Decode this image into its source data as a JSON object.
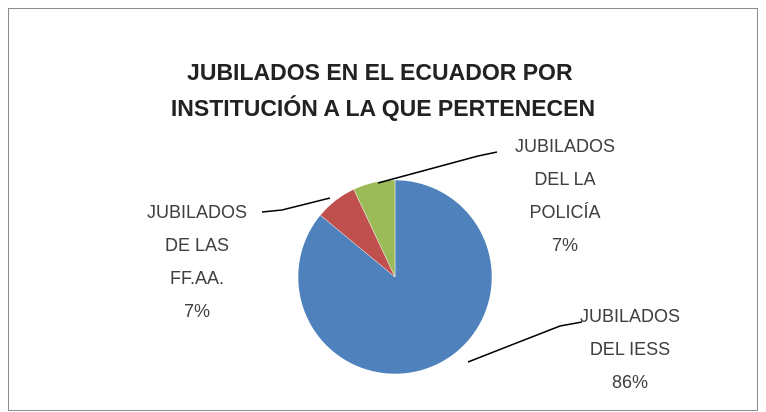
{
  "chart_data": {
    "type": "pie",
    "title": [
      "JUBILADOS EN EL ECUADOR POR",
      "INSTITUCIÓN A LA QUE PERTENECEN"
    ],
    "categories": [
      [
        "JUBILADOS",
        "DEL IESS"
      ],
      [
        "JUBILADOS",
        "DE LAS",
        "FF.AA."
      ],
      [
        "JUBILADOS",
        "DEL LA",
        "POLICÍA"
      ]
    ],
    "values": [
      86,
      7,
      7
    ],
    "value_labels": [
      "86%",
      "7%",
      "7%"
    ],
    "colors": [
      "#4f81bd",
      "#c0504d",
      "#9bbb59"
    ]
  }
}
